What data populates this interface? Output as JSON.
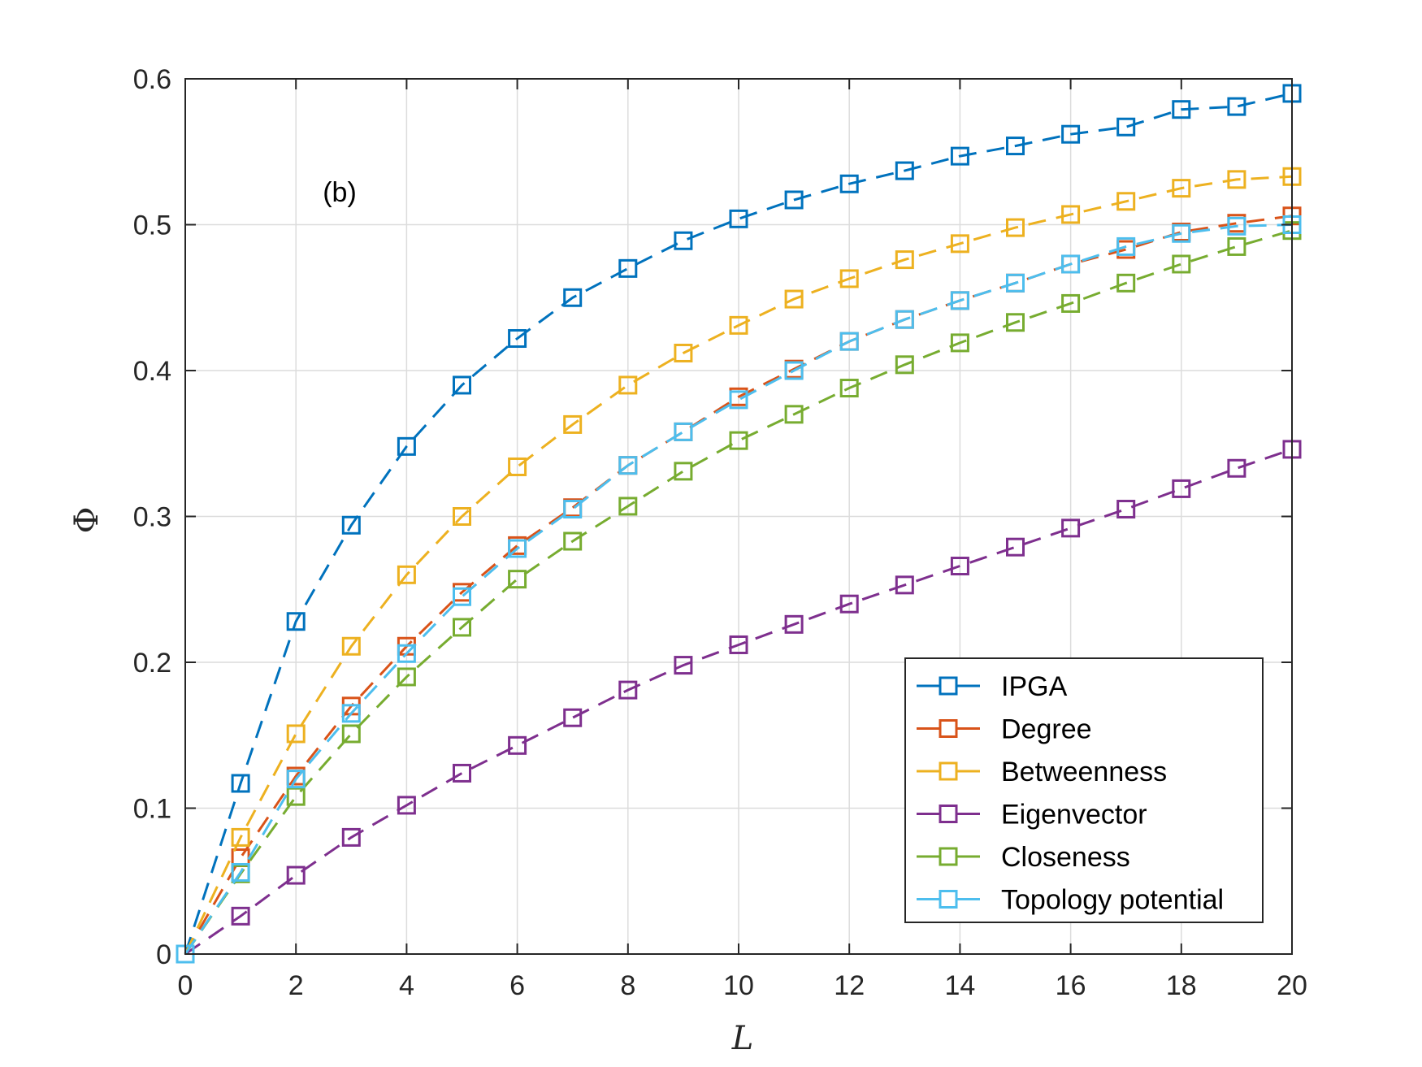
{
  "chart_data": {
    "type": "line",
    "title": "",
    "annotation": "(b)",
    "xlabel": "L",
    "ylabel": "Φ",
    "xlim": [
      0,
      20
    ],
    "ylim": [
      0,
      0.6
    ],
    "xticks": [
      0,
      2,
      4,
      6,
      8,
      10,
      12,
      14,
      16,
      18,
      20
    ],
    "yticks": [
      0,
      0.1,
      0.2,
      0.3,
      0.4,
      0.5,
      0.6
    ],
    "xtick_labels": [
      "0",
      "2",
      "4",
      "6",
      "8",
      "10",
      "12",
      "14",
      "16",
      "18",
      "20"
    ],
    "ytick_labels": [
      "0",
      "0.1",
      "0.2",
      "0.3",
      "0.4",
      "0.5",
      "0.6"
    ],
    "grid": true,
    "legend_position": "bottom-right",
    "marker": "square",
    "line_style": "dashed",
    "x": [
      0,
      1,
      2,
      3,
      4,
      5,
      6,
      7,
      8,
      9,
      10,
      11,
      12,
      13,
      14,
      15,
      16,
      17,
      18,
      19,
      20
    ],
    "series": [
      {
        "name": "IPGA",
        "color": "#0072BD",
        "values": [
          0,
          0.117,
          0.228,
          0.294,
          0.348,
          0.39,
          0.422,
          0.45,
          0.47,
          0.489,
          0.504,
          0.517,
          0.528,
          0.537,
          0.547,
          0.554,
          0.562,
          0.567,
          0.579,
          0.581,
          0.59
        ]
      },
      {
        "name": "Degree",
        "color": "#D95319",
        "values": [
          0,
          0.066,
          0.122,
          0.17,
          0.211,
          0.248,
          0.28,
          0.306,
          0.335,
          0.358,
          0.382,
          0.401,
          0.42,
          0.435,
          0.448,
          0.46,
          0.473,
          0.483,
          0.495,
          0.501,
          0.506
        ]
      },
      {
        "name": "Betweenness",
        "color": "#EDB120",
        "values": [
          0,
          0.08,
          0.151,
          0.211,
          0.26,
          0.3,
          0.334,
          0.363,
          0.39,
          0.412,
          0.431,
          0.449,
          0.463,
          0.476,
          0.487,
          0.498,
          0.507,
          0.516,
          0.525,
          0.531,
          0.533
        ]
      },
      {
        "name": "Eigenvector",
        "color": "#7E2F8E",
        "values": [
          0,
          0.026,
          0.054,
          0.08,
          0.102,
          0.124,
          0.143,
          0.162,
          0.181,
          0.198,
          0.212,
          0.226,
          0.24,
          0.253,
          0.266,
          0.279,
          0.292,
          0.305,
          0.319,
          0.333,
          0.346
        ]
      },
      {
        "name": "Closeness",
        "color": "#77AC30",
        "values": [
          0,
          0.055,
          0.108,
          0.151,
          0.19,
          0.224,
          0.257,
          0.283,
          0.307,
          0.331,
          0.352,
          0.37,
          0.388,
          0.404,
          0.419,
          0.433,
          0.446,
          0.46,
          0.473,
          0.485,
          0.496
        ]
      },
      {
        "name": "Topology potential",
        "color": "#4DBEEE",
        "values": [
          0,
          0.056,
          0.12,
          0.165,
          0.206,
          0.245,
          0.278,
          0.305,
          0.335,
          0.358,
          0.38,
          0.4,
          0.42,
          0.435,
          0.448,
          0.46,
          0.473,
          0.485,
          0.494,
          0.499,
          0.5
        ]
      }
    ]
  }
}
